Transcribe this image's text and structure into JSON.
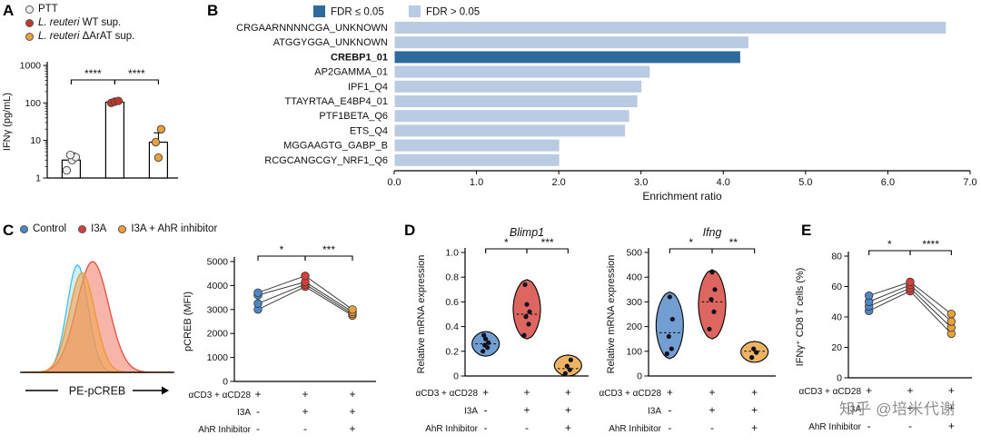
{
  "watermark": "知乎 @培米代谢",
  "panels": {
    "a": {
      "label": "A",
      "legend": [
        {
          "text": "PTT",
          "color": "#efefef"
        },
        {
          "italic": "L. reuteri",
          "text": " WT sup.",
          "color": "#c0392b"
        },
        {
          "italic": "L. reuteri",
          "text": " ΔArAT sup.",
          "color": "#e9a13c"
        }
      ]
    },
    "b": {
      "label": "B"
    },
    "c": {
      "label": "C",
      "legend": [
        {
          "text": "Control",
          "color": "#4f86c6"
        },
        {
          "text": "I3A",
          "color": "#d6403a"
        },
        {
          "text": "I3A + AhR inhibitor",
          "color": "#e9a13c"
        }
      ]
    },
    "d": {
      "label": "D"
    },
    "e": {
      "label": "E"
    }
  },
  "chart_data": [
    {
      "id": "panelA",
      "type": "bar",
      "ylabel": "IFNγ (pg/mL)",
      "yscale": "log",
      "ylim": [
        1,
        1000
      ],
      "yticks": [
        1,
        10,
        100,
        1000
      ],
      "categories": [
        "PTT",
        "L. reuteri WT sup.",
        "L. reuteri ΔArAT sup."
      ],
      "values": [
        3,
        105,
        9
      ],
      "error_high": [
        4.6,
        122,
        16
      ],
      "points": [
        [
          1.6,
          3.0,
          3.6,
          4.1
        ],
        [
          100,
          108,
          113
        ],
        [
          3.5,
          9,
          20
        ]
      ],
      "point_colors": [
        "#efefef",
        "#c0392b",
        "#e9a13c"
      ],
      "significance": [
        {
          "from": 0,
          "to": 1,
          "label": "****"
        },
        {
          "from": 1,
          "to": 2,
          "label": "****"
        }
      ]
    },
    {
      "id": "panelB",
      "type": "hbar",
      "xlabel": "Enrichment ratio",
      "xlim": [
        0,
        7
      ],
      "xticks": [
        0,
        1,
        2,
        3,
        4,
        5,
        6,
        7
      ],
      "legend": [
        {
          "label": "FDR ≤ 0.05",
          "color": "#2e6a9d"
        },
        {
          "label": "FDR > 0.05",
          "color": "#b9cbe3"
        }
      ],
      "categories": [
        "CRGAARNNNNCGA_UNKNOWN",
        "ATGGYGGA_UNKNOWN",
        "CREBP1_01",
        "AP2GAMMA_01",
        "IPF1_Q4",
        "TTAYRTAA_E4BP4_01",
        "PTF1BETA_Q6",
        "ETS_Q4",
        "MGGAAGTG_GABP_B",
        "RCGCANGCGY_NRF1_Q6"
      ],
      "values": [
        6.7,
        4.3,
        4.2,
        3.1,
        3.0,
        2.95,
        2.85,
        2.8,
        2.0,
        2.0
      ],
      "highlight_index": 2,
      "bar_colors": {
        "highlight": "#2e6a9d",
        "normal": "#b9cbe3"
      }
    },
    {
      "id": "panelC_hist",
      "type": "density",
      "xlabel": "PE-pCREB",
      "curves": [
        {
          "name": "Control",
          "center": 0.37,
          "width": 0.1,
          "height": 0.97,
          "stroke": "#49c3e8",
          "fill": "rgba(120,205,235,0.35)"
        },
        {
          "name": "I3A",
          "center": 0.47,
          "width": 0.15,
          "height": 1.0,
          "stroke": "#e2574a",
          "fill": "rgba(240,120,100,0.55)"
        },
        {
          "name": "I3A + AhR inhibitor",
          "center": 0.4,
          "width": 0.12,
          "height": 0.9,
          "stroke": "#eb9a3f",
          "fill": "rgba(243,165,80,0.6)"
        }
      ]
    },
    {
      "id": "panelC_scatter",
      "type": "paired-scatter",
      "ylabel": "pCREB (MFI)",
      "ylim": [
        0,
        5000
      ],
      "yticks": [
        0,
        1000,
        2000,
        3000,
        4000,
        5000
      ],
      "groups": [
        "Control",
        "I3A",
        "I3A + AhR inhibitor"
      ],
      "colors": [
        "#4f86c6",
        "#d6403a",
        "#e9a13c"
      ],
      "series": [
        [
          3000,
          3950,
          2750
        ],
        [
          3250,
          4050,
          2820
        ],
        [
          3600,
          4150,
          2900
        ],
        [
          3700,
          4400,
          3000
        ]
      ],
      "significance": [
        {
          "from": 0,
          "to": 1,
          "label": "*"
        },
        {
          "from": 1,
          "to": 2,
          "label": "***"
        }
      ],
      "conditions": [
        {
          "label": "αCD3 + αCD28",
          "values": [
            "+",
            "+",
            "+"
          ]
        },
        {
          "label": "I3A",
          "values": [
            "-",
            "+",
            "+"
          ]
        },
        {
          "label": "AhR Inhibitor",
          "values": [
            "-",
            "-",
            "+"
          ]
        }
      ]
    },
    {
      "id": "panelD_blimp1",
      "type": "violin",
      "title": "Blimp1",
      "ylabel": "Relative mRNA expression",
      "ylim": [
        0,
        1
      ],
      "yticks": [
        0,
        0.2,
        0.4,
        0.6,
        0.8,
        1
      ],
      "colors": [
        "#4f86c6",
        "#d6403a",
        "#e9a13c"
      ],
      "violins": [
        {
          "min": 0.16,
          "max": 0.36,
          "median": 0.26,
          "points": [
            0.2,
            0.23,
            0.25,
            0.27,
            0.3,
            0.33
          ]
        },
        {
          "min": 0.3,
          "max": 0.78,
          "median": 0.5,
          "points": [
            0.33,
            0.42,
            0.48,
            0.52,
            0.58,
            0.74
          ]
        },
        {
          "min": 0.0,
          "max": 0.17,
          "median": 0.06,
          "points": [
            0.02,
            0.05,
            0.08,
            0.13
          ]
        }
      ],
      "significance": [
        {
          "from": 0,
          "to": 1,
          "label": "*"
        },
        {
          "from": 1,
          "to": 2,
          "label": "***"
        }
      ],
      "conditions": [
        {
          "label": "αCD3 + αCD28",
          "values": [
            "+",
            "+",
            "+"
          ]
        },
        {
          "label": "I3A",
          "values": [
            "-",
            "+",
            "+"
          ]
        },
        {
          "label": "AhR Inhibitor",
          "values": [
            "-",
            "-",
            "+"
          ]
        }
      ]
    },
    {
      "id": "panelD_ifng",
      "type": "violin",
      "title": "Ifng",
      "ylabel": "Relative mRNA expression",
      "ylim": [
        0,
        500
      ],
      "yticks": [
        0,
        100,
        200,
        300,
        400,
        500
      ],
      "colors": [
        "#4f86c6",
        "#d6403a",
        "#e9a13c"
      ],
      "violins": [
        {
          "min": 70,
          "max": 340,
          "median": 175,
          "points": [
            90,
            110,
            160,
            230,
            320
          ]
        },
        {
          "min": 150,
          "max": 430,
          "median": 300,
          "points": [
            190,
            260,
            310,
            350,
            420
          ]
        },
        {
          "min": 55,
          "max": 140,
          "median": 100,
          "points": [
            75,
            95,
            110
          ]
        }
      ],
      "significance": [
        {
          "from": 0,
          "to": 1,
          "label": "*"
        },
        {
          "from": 1,
          "to": 2,
          "label": "**"
        }
      ],
      "conditions": [
        {
          "label": "αCD3 + αCD28",
          "values": [
            "+",
            "+",
            "+"
          ]
        },
        {
          "label": "I3A",
          "values": [
            "-",
            "+",
            "+"
          ]
        },
        {
          "label": "AhR Inhibitor",
          "values": [
            "-",
            "-",
            "+"
          ]
        }
      ]
    },
    {
      "id": "panelE",
      "type": "paired-scatter",
      "ylabel": "IFNγ⁺ CD8 T cells (%)",
      "ylim": [
        0,
        80
      ],
      "yticks": [
        0,
        20,
        40,
        60,
        80
      ],
      "groups": [
        "Control",
        "I3A",
        "I3A + AhR inhibitor"
      ],
      "colors": [
        "#4f86c6",
        "#d6403a",
        "#e9a13c"
      ],
      "series": [
        [
          44,
          57,
          29
        ],
        [
          47,
          59,
          33
        ],
        [
          50,
          61,
          37
        ],
        [
          54,
          63,
          42
        ]
      ],
      "significance": [
        {
          "from": 0,
          "to": 1,
          "label": "*"
        },
        {
          "from": 1,
          "to": 2,
          "label": "****"
        }
      ],
      "conditions": [
        {
          "label": "αCD3 + αCD28",
          "values": [
            "+",
            "+",
            "+"
          ]
        },
        {
          "label": "I3A",
          "values": [
            "-",
            "+",
            "+"
          ]
        },
        {
          "label": "AhR Inhibitor",
          "values": [
            "-",
            "-",
            "+"
          ]
        }
      ]
    }
  ]
}
